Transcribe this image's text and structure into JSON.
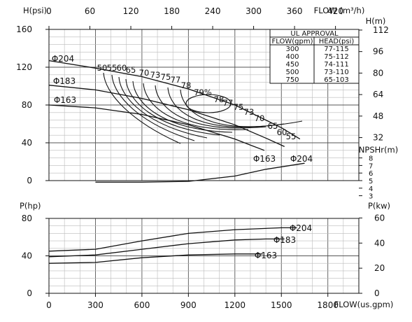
{
  "chart_data": [
    {
      "type": "line",
      "title": "",
      "xlabel": "FLOW(us.gpm)",
      "ylabel": "H(psi)",
      "x_ticks": [
        "0",
        "300",
        "600",
        "900",
        "1200",
        "1500",
        "1800"
      ],
      "xlim": [
        0,
        2000
      ],
      "ylim": [
        0,
        160
      ],
      "y_ticks": [
        "0",
        "40",
        "80",
        "120",
        "160"
      ],
      "top_axis": {
        "label": "FLOW (m³/h)",
        "ticks": [
          "0",
          "60",
          "120",
          "180",
          "240",
          "300",
          "360",
          "420"
        ]
      },
      "right_axis_head": {
        "label": "H(m)",
        "ticks": [
          "112",
          "96",
          "80",
          "64",
          "48",
          "32"
        ]
      },
      "right_axis_npsh": {
        "label": "NPSHr(m)",
        "ticks": [
          "8",
          "7",
          "6",
          "5",
          "4",
          "3"
        ]
      },
      "grid": true,
      "series": [
        {
          "name": "Φ204",
          "x": [
            0,
            300,
            600,
            900,
            1200,
            1500,
            1620
          ],
          "y": [
            127,
            119,
            110,
            97,
            80,
            56,
            44
          ]
        },
        {
          "name": "Φ183",
          "x": [
            0,
            300,
            600,
            900,
            1200,
            1400,
            1520
          ],
          "y": [
            101,
            96,
            87,
            75,
            59,
            45,
            36
          ]
        },
        {
          "name": "Φ163",
          "x": [
            0,
            300,
            600,
            900,
            1200,
            1310,
            1390
          ],
          "y": [
            80,
            77,
            70,
            59,
            44,
            37,
            32
          ]
        }
      ],
      "efficiency_labels": [
        "50",
        "55",
        "60",
        "65",
        "70",
        "73",
        "75",
        "77",
        "78",
        "79%",
        "78",
        "77",
        "75",
        "73",
        "70",
        "65",
        "60",
        "55"
      ],
      "npsh_series": {
        "name": "Φ163 / Φ204",
        "x": [
          300,
          600,
          900,
          1200,
          1400,
          1650
        ],
        "y": [
          4.8,
          4.8,
          4.9,
          5.6,
          6.5,
          7.3
        ]
      },
      "ul_approval": {
        "title": "UL APPROVAL",
        "headers": [
          "FLOW(gpm)",
          "HEAD(psi)"
        ],
        "rows": [
          [
            "300",
            "77-115"
          ],
          [
            "400",
            "75-112"
          ],
          [
            "450",
            "74-111"
          ],
          [
            "500",
            "73-110"
          ],
          [
            "750",
            "65-103"
          ]
        ]
      }
    },
    {
      "type": "line",
      "title": "",
      "xlabel": "FLOW(us.gpm)",
      "ylabel": "P(hp)",
      "xlim": [
        0,
        2000
      ],
      "ylim": [
        0,
        80
      ],
      "y_ticks": [
        "0",
        "40",
        "80"
      ],
      "right_axis": {
        "label": "P(kw)",
        "ticks": [
          "60",
          "40",
          "20",
          "0"
        ]
      },
      "grid": true,
      "series": [
        {
          "name": "Φ204",
          "x": [
            0,
            300,
            600,
            900,
            1200,
            1500,
            1600
          ],
          "y": [
            45,
            47,
            56,
            64,
            68,
            70,
            70
          ]
        },
        {
          "name": "Φ183",
          "x": [
            0,
            300,
            600,
            900,
            1200,
            1400,
            1520
          ],
          "y": [
            39,
            41,
            47,
            53,
            57,
            58,
            58
          ]
        },
        {
          "name": "Φ163",
          "x": [
            0,
            300,
            600,
            900,
            1200,
            1300,
            1380
          ],
          "y": [
            32,
            33,
            38,
            41,
            42,
            42,
            42
          ]
        }
      ]
    }
  ],
  "labels": {
    "h_psi": "H(psi)",
    "flow_m3h": "FLOW (m³/h)",
    "h_m": "H(m)",
    "npshr": "NPSHr(m)",
    "p_hp": "P(hp)",
    "p_kw": "P(kw)",
    "flow_gpm": "FLOW(us.gpm)",
    "d204": "Φ204",
    "d183": "Φ183",
    "d163": "Φ163"
  }
}
